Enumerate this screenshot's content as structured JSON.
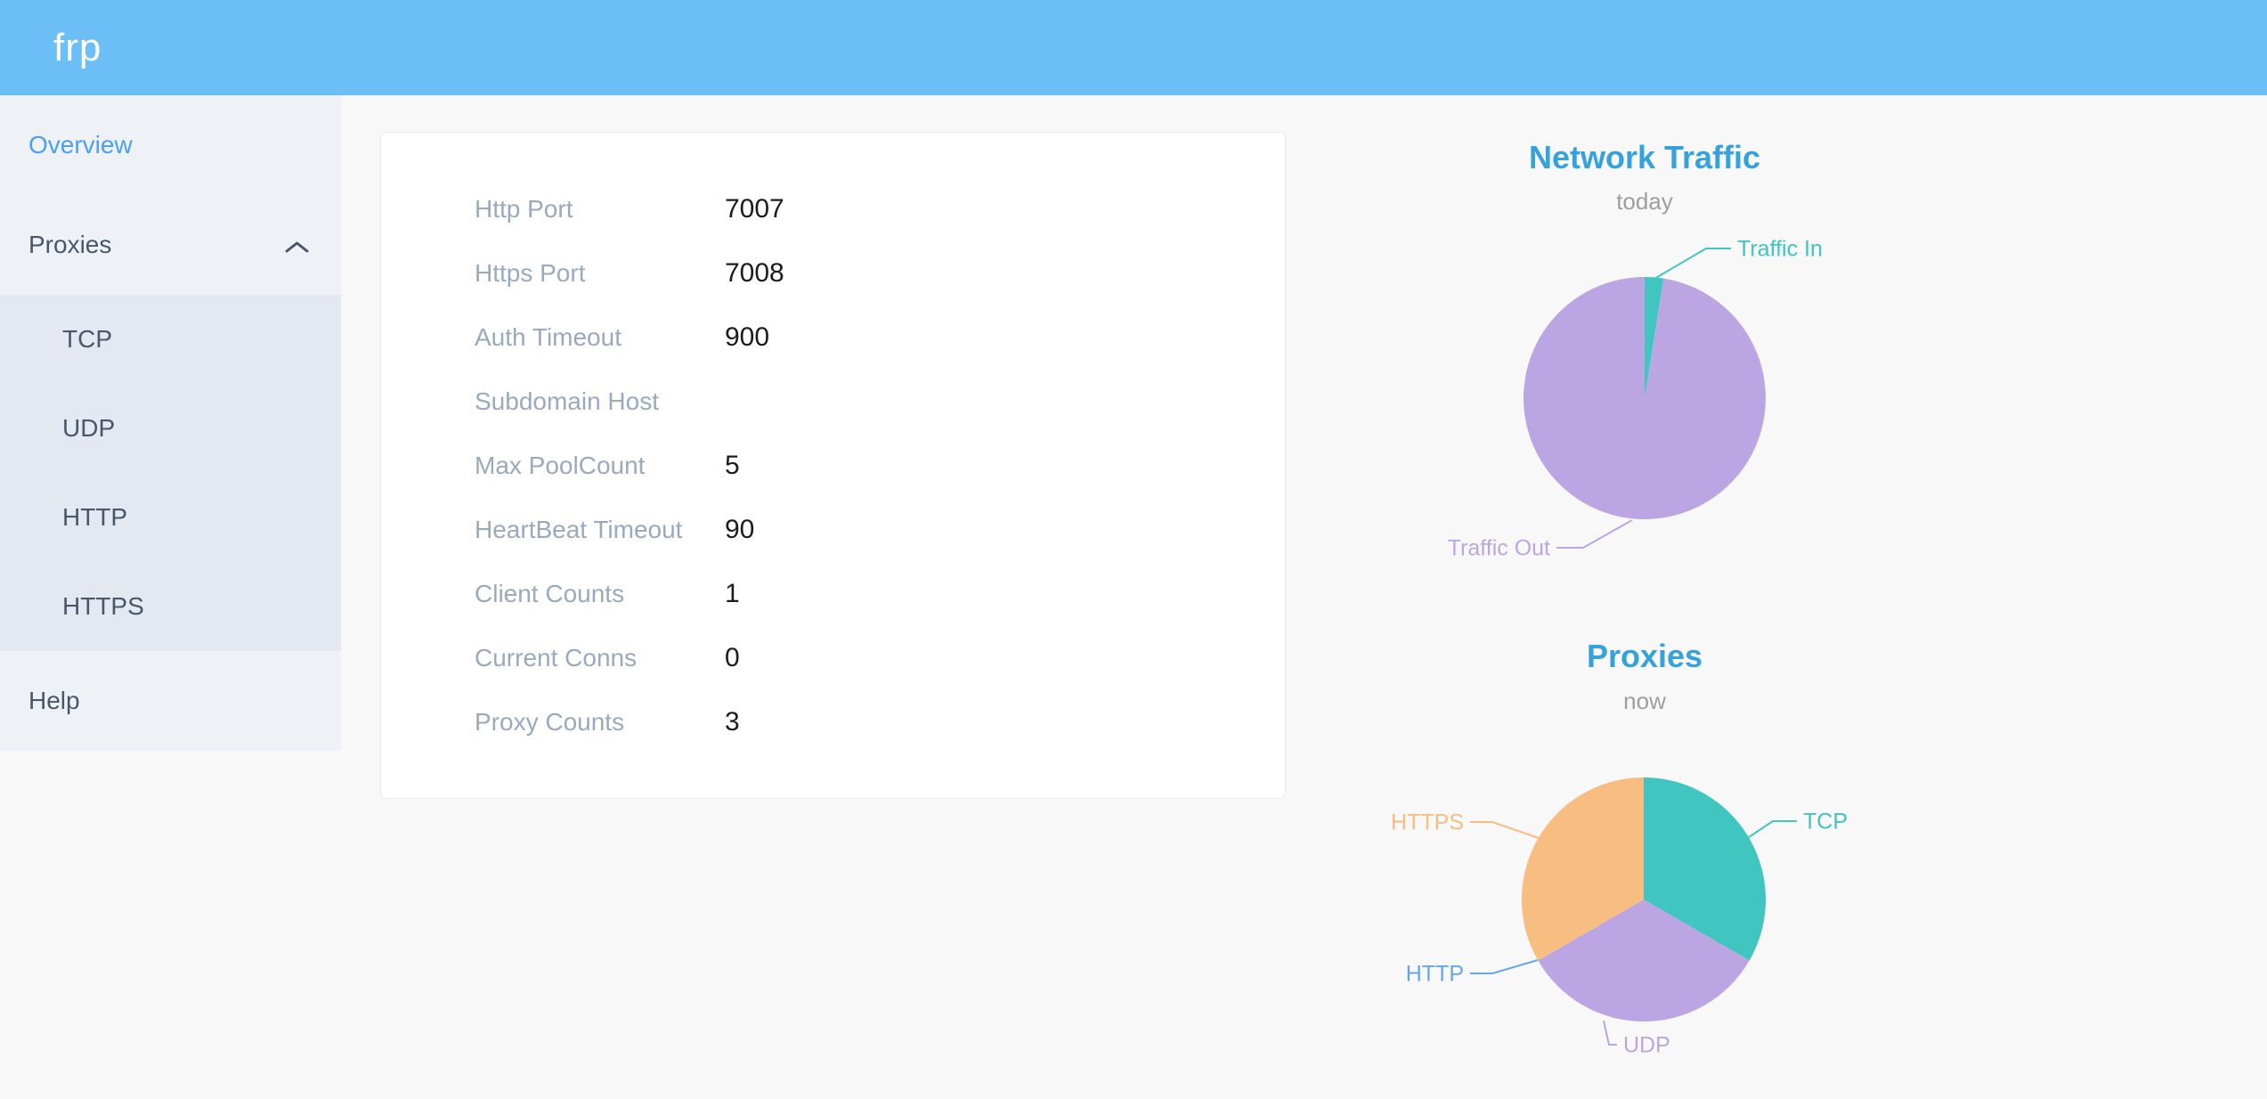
{
  "header": {
    "logo": "frp",
    "bg_color": "#6cbef6"
  },
  "sidebar": {
    "items": [
      {
        "label": "Overview",
        "active": true
      },
      {
        "label": "Proxies",
        "expanded": true,
        "children": [
          "TCP",
          "UDP",
          "HTTP",
          "HTTPS"
        ]
      },
      {
        "label": "Help",
        "active": false
      }
    ],
    "active_color": "#4aa0f6"
  },
  "overview": {
    "rows": [
      {
        "label": "Http Port",
        "value": "7007"
      },
      {
        "label": "Https Port",
        "value": "7008"
      },
      {
        "label": "Auth Timeout",
        "value": "900"
      },
      {
        "label": "Subdomain Host",
        "value": ""
      },
      {
        "label": "Max PoolCount",
        "value": "5"
      },
      {
        "label": "HeartBeat Timeout",
        "value": "90"
      },
      {
        "label": "Client Counts",
        "value": "1"
      },
      {
        "label": "Current Conns",
        "value": "0"
      },
      {
        "label": "Proxy Counts",
        "value": "3"
      }
    ]
  },
  "chart_data": [
    {
      "type": "pie",
      "title": "Network Traffic",
      "subtitle": "today",
      "legend_position": "callout-labels",
      "series": [
        {
          "name": "Traffic In",
          "value": 2.5,
          "color": "#41c5c1"
        },
        {
          "name": "Traffic Out",
          "value": 97.5,
          "color": "#bba6e3"
        }
      ]
    },
    {
      "type": "pie",
      "title": "Proxies",
      "subtitle": "now",
      "legend_position": "callout-labels",
      "series": [
        {
          "name": "TCP",
          "value": 1,
          "color": "#41c5c1"
        },
        {
          "name": "UDP",
          "value": 1,
          "color": "#bba6e3"
        },
        {
          "name": "HTTP",
          "value": 0,
          "color": "#64a8ea"
        },
        {
          "name": "HTTPS",
          "value": 1,
          "color": "#f8bd81"
        }
      ]
    }
  ]
}
